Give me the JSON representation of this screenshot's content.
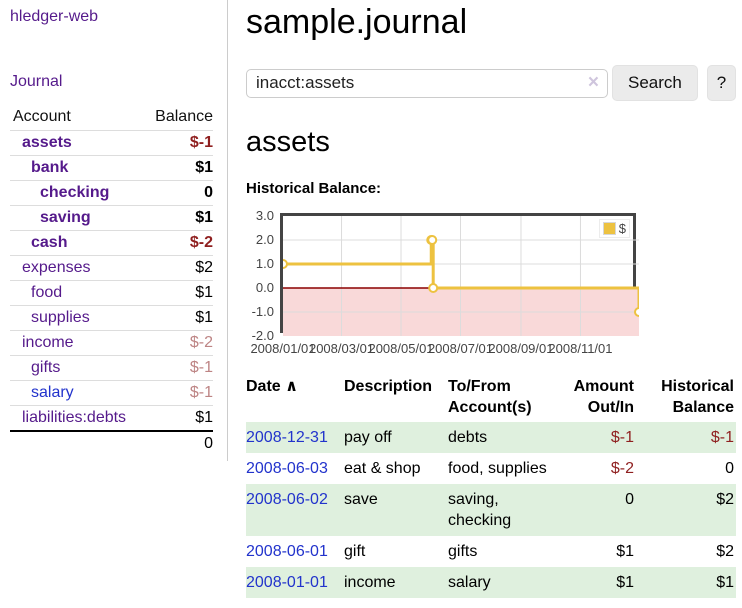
{
  "brand": "hledger-web",
  "sidebar": {
    "journal_link": "Journal",
    "accounts": {
      "header_account": "Account",
      "header_balance": "Balance",
      "rows": [
        {
          "name": "assets",
          "balance": "$-1",
          "depth": 1,
          "bold": true,
          "neg": "strong",
          "blue": false
        },
        {
          "name": "bank",
          "balance": "$1",
          "depth": 2,
          "bold": true,
          "neg": "",
          "blue": false
        },
        {
          "name": "checking",
          "balance": "0",
          "depth": 3,
          "bold": true,
          "neg": "",
          "blue": false
        },
        {
          "name": "saving",
          "balance": "$1",
          "depth": 3,
          "bold": true,
          "neg": "",
          "blue": false
        },
        {
          "name": "cash",
          "balance": "$-2",
          "depth": 2,
          "bold": true,
          "neg": "strong",
          "blue": false
        },
        {
          "name": "expenses",
          "balance": "$2",
          "depth": 1,
          "bold": false,
          "neg": "",
          "blue": false
        },
        {
          "name": "food",
          "balance": "$1",
          "depth": 2,
          "bold": false,
          "neg": "",
          "blue": false
        },
        {
          "name": "supplies",
          "balance": "$1",
          "depth": 2,
          "bold": false,
          "neg": "",
          "blue": false
        },
        {
          "name": "income",
          "balance": "$-2",
          "depth": 1,
          "bold": false,
          "neg": "soft",
          "blue": false
        },
        {
          "name": "gifts",
          "balance": "$-1",
          "depth": 2,
          "bold": false,
          "neg": "soft",
          "blue": false
        },
        {
          "name": "salary",
          "balance": "$-1",
          "depth": 2,
          "bold": false,
          "neg": "soft",
          "blue": true
        },
        {
          "name": "liabilities:debts",
          "balance": "$1",
          "depth": 1,
          "bold": false,
          "neg": "",
          "blue": false
        }
      ],
      "total": "0"
    }
  },
  "main": {
    "title": "sample.journal",
    "search": {
      "value": "inacct:assets",
      "clear_icon": "×",
      "search_button": "Search",
      "help_button": "?"
    },
    "account_heading": "assets"
  },
  "chart_data": {
    "type": "line",
    "step": true,
    "title": "Historical Balance:",
    "series": [
      {
        "name": "$",
        "color": "#edc240",
        "points": [
          {
            "date": "2008-01-01",
            "day": 0,
            "value": 1
          },
          {
            "date": "2008-06-01",
            "day": 152,
            "value": 2
          },
          {
            "date": "2008-06-02",
            "day": 153,
            "value": 2
          },
          {
            "date": "2008-06-03",
            "day": 154,
            "value": 0
          },
          {
            "date": "2008-12-31",
            "day": 365,
            "value": -1
          }
        ]
      }
    ],
    "x_ticks": [
      {
        "label": "2008/01/01",
        "day": 0
      },
      {
        "label": "2008/03/01",
        "day": 60
      },
      {
        "label": "2008/05/01",
        "day": 121
      },
      {
        "label": "2008/07/01",
        "day": 182
      },
      {
        "label": "2008/09/01",
        "day": 244
      },
      {
        "label": "2008/11/01",
        "day": 305
      }
    ],
    "x_range_days": [
      0,
      365
    ],
    "y_ticks": [
      "3.0",
      "2.0",
      "1.0",
      "0.0",
      "-1.0",
      "-2.0"
    ],
    "ylim": [
      -2,
      3
    ],
    "grid": true,
    "legend_position": "top-right",
    "negative_region_color": "#f9d9d9",
    "zero_line_color": "#8b0000"
  },
  "register": {
    "headers": {
      "date": "Date",
      "sort_icon": "∧",
      "description": "Description",
      "accounts": "To/From Account(s)",
      "amount": "Amount Out/In",
      "balance": "Historical Balance"
    },
    "rows": [
      {
        "date": "2008-12-31",
        "description": "pay off",
        "accounts": "debts",
        "amount": "$-1",
        "amount_neg": true,
        "balance": "$-1",
        "balance_neg": true
      },
      {
        "date": "2008-06-03",
        "description": "eat & shop",
        "accounts": "food, supplies",
        "amount": "$-2",
        "amount_neg": true,
        "balance": "0",
        "balance_neg": false
      },
      {
        "date": "2008-06-02",
        "description": "save",
        "accounts": "saving, checking",
        "amount": "0",
        "amount_neg": false,
        "balance": "$2",
        "balance_neg": false
      },
      {
        "date": "2008-06-01",
        "description": "gift",
        "accounts": "gifts",
        "amount": "$1",
        "amount_neg": false,
        "balance": "$2",
        "balance_neg": false
      },
      {
        "date": "2008-01-01",
        "description": "income",
        "accounts": "salary",
        "amount": "$1",
        "amount_neg": false,
        "balance": "$1",
        "balance_neg": false
      }
    ]
  }
}
